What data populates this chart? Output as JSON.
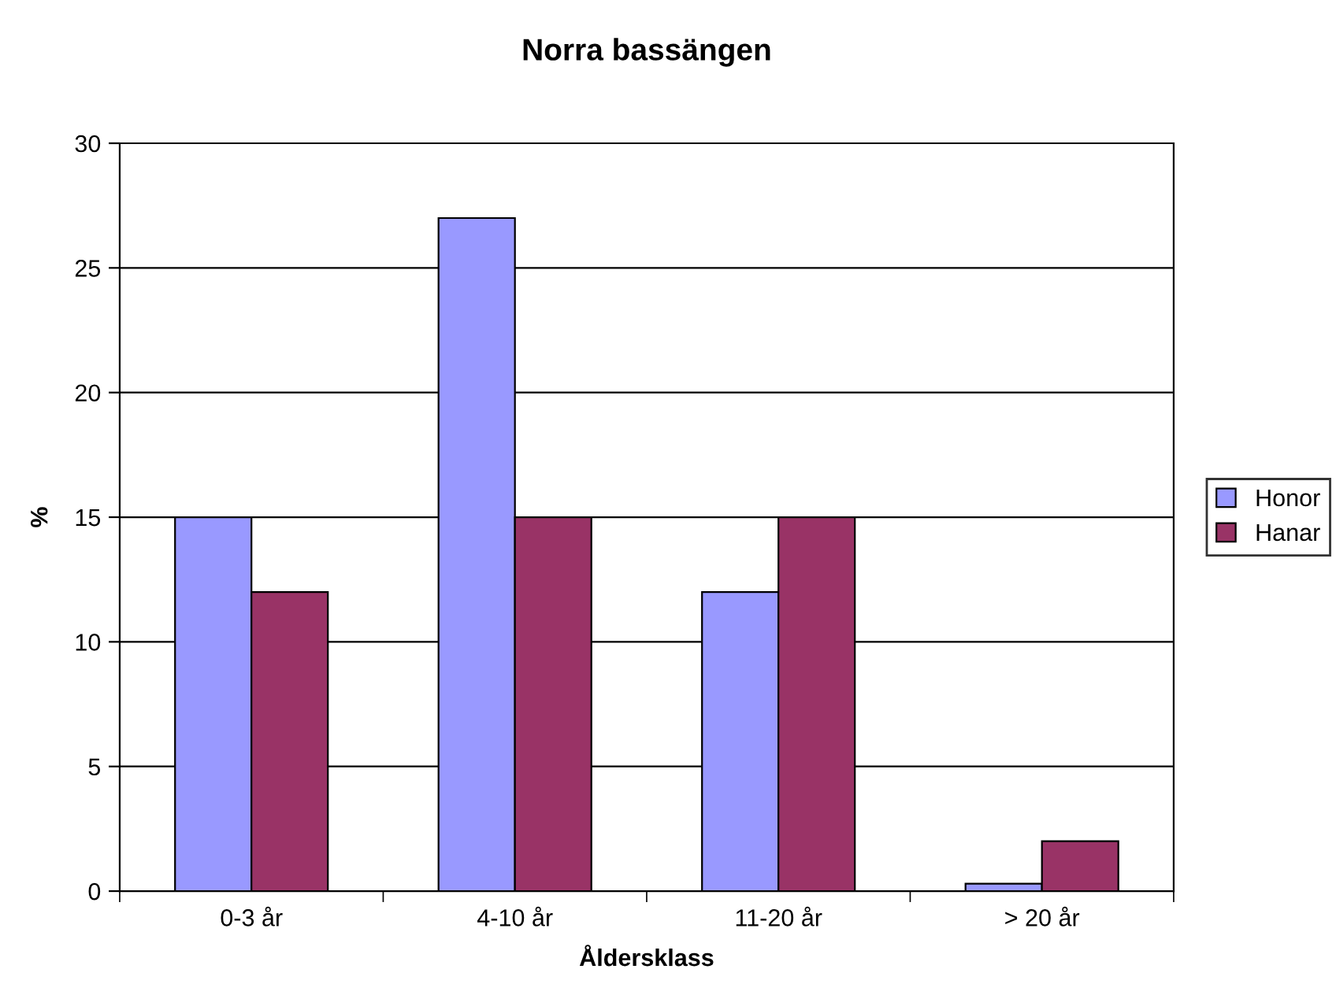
{
  "chart_data": {
    "type": "bar",
    "title": "Norra bassängen",
    "xlabel": "Åldersklass",
    "ylabel": "%",
    "categories": [
      "0-3 år",
      "4-10 år",
      "11-20 år",
      "> 20 år"
    ],
    "series": [
      {
        "name": "Honor",
        "color": "#9999ff",
        "values": [
          15,
          27,
          12,
          0.3
        ]
      },
      {
        "name": "Hanar",
        "color": "#993366",
        "values": [
          12,
          15,
          15,
          2
        ]
      }
    ],
    "ylim": [
      0,
      30
    ],
    "yticks": [
      0,
      5,
      10,
      15,
      20,
      25,
      30
    ],
    "grid": "y",
    "legend": "right"
  }
}
